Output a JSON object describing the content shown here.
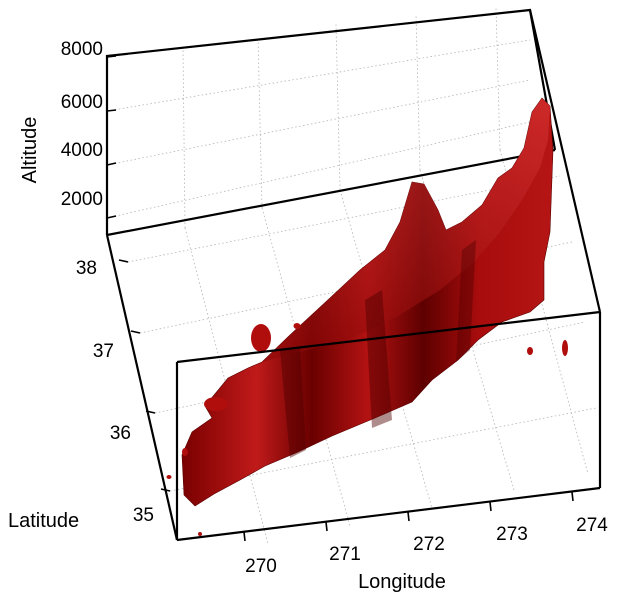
{
  "chart_data": {
    "type": "surface3d",
    "title": "",
    "xlabel": "Longitude",
    "ylabel": "Latitude",
    "zlabel": "Altitude",
    "x_ticks": [
      "270",
      "271",
      "272",
      "273",
      "274"
    ],
    "y_ticks": [
      "35",
      "36",
      "37",
      "38"
    ],
    "z_ticks": [
      "2000",
      "4000",
      "6000",
      "8000"
    ],
    "xlim": [
      269.4,
      274.2
    ],
    "ylim": [
      34.7,
      38.3
    ],
    "zlim": [
      0,
      8000
    ],
    "grid": true,
    "surface_color": "#b00d0d",
    "ridge_profile": [
      {
        "longitude": 269.5,
        "top_altitude": 1500
      },
      {
        "longitude": 270.0,
        "top_altitude": 2200
      },
      {
        "longitude": 270.5,
        "top_altitude": 2600
      },
      {
        "longitude": 271.0,
        "top_altitude": 3000
      },
      {
        "longitude": 271.5,
        "top_altitude": 3500
      },
      {
        "longitude": 272.0,
        "top_altitude": 4600
      },
      {
        "longitude": 272.2,
        "top_altitude": 6000
      },
      {
        "longitude": 272.5,
        "top_altitude": 4000
      },
      {
        "longitude": 273.0,
        "top_altitude": 5000
      },
      {
        "longitude": 273.5,
        "top_altitude": 7500
      },
      {
        "longitude": 273.8,
        "top_altitude": 7800
      }
    ]
  }
}
